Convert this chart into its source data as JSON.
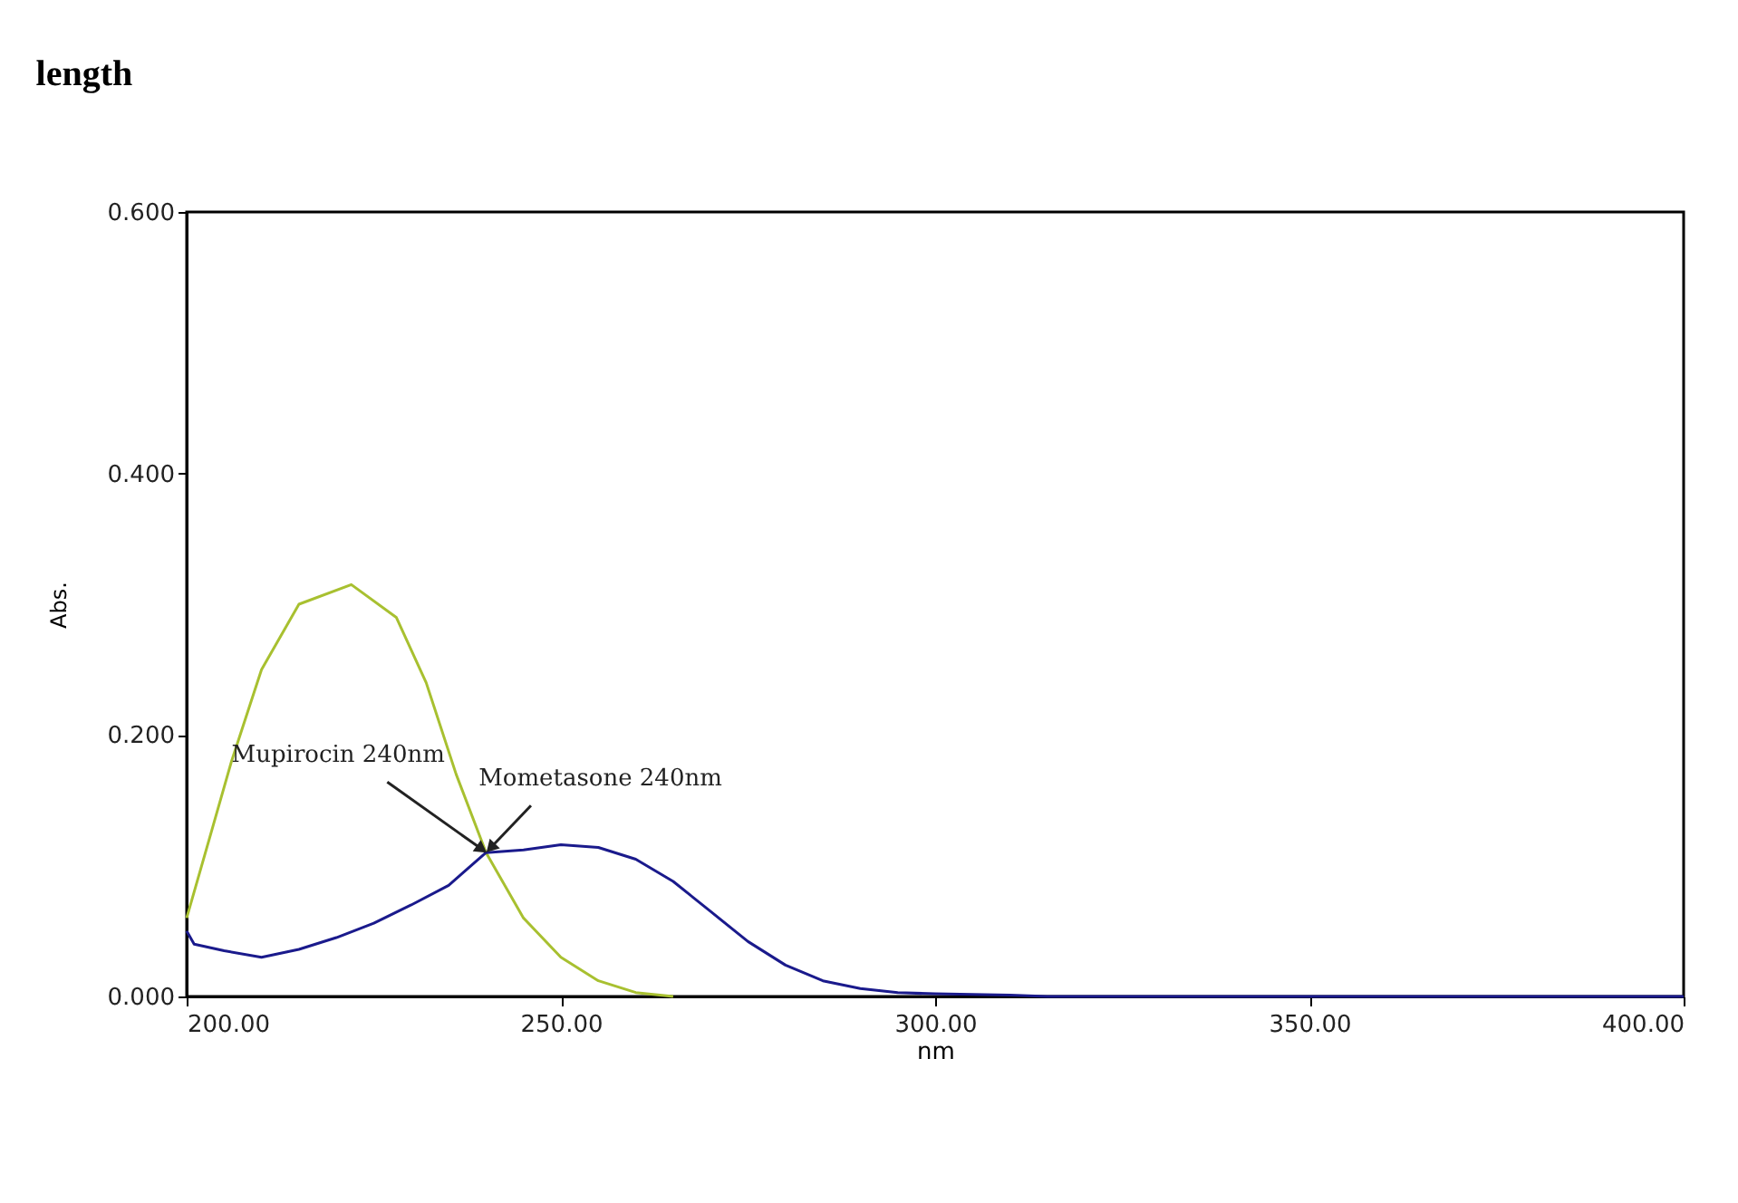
{
  "chart_data": {
    "type": "line",
    "title": "length",
    "xlabel": "nm",
    "ylabel": "Abs.",
    "x": [
      200,
      203,
      206,
      210,
      215,
      222,
      228,
      232,
      236,
      240,
      245,
      250,
      255,
      260,
      265
    ],
    "series": [
      {
        "color": "#a8c030",
        "values": [
          0.06,
          0.12,
          0.18,
          0.25,
          0.3,
          0.315,
          0.29,
          0.24,
          0.17,
          0.11,
          0.06,
          0.03,
          0.012,
          0.003,
          0.0
        ]
      },
      {
        "color": "#1a1a8c",
        "x": [
          200,
          201,
          205,
          210,
          215,
          220,
          225,
          230,
          235,
          240,
          245,
          250,
          255,
          260,
          265,
          270,
          275,
          280,
          285,
          290,
          295,
          300,
          310,
          315,
          400
        ],
        "values": [
          0.05,
          0.04,
          0.035,
          0.03,
          0.036,
          0.045,
          0.056,
          0.07,
          0.085,
          0.11,
          0.112,
          0.116,
          0.114,
          0.105,
          0.088,
          0.065,
          0.042,
          0.024,
          0.012,
          0.006,
          0.003,
          0.002,
          0.001,
          0.0,
          0.0
        ]
      }
    ],
    "annotations": [
      {
        "text": "Mupirocin 240nm",
        "x": 240,
        "y": 0.11
      },
      {
        "text": "Mometasone 240nm",
        "x": 240,
        "y": 0.11
      }
    ],
    "xlim": [
      200,
      400
    ],
    "ylim": [
      0,
      0.6
    ],
    "xticks": [
      {
        "value": 200,
        "label": "200.00"
      },
      {
        "value": 250,
        "label": "250.00"
      },
      {
        "value": 300,
        "label": "300.00"
      },
      {
        "value": 350,
        "label": "350.00"
      },
      {
        "value": 400,
        "label": "400.00"
      }
    ],
    "yticks": [
      {
        "value": 0,
        "label": "0.000"
      },
      {
        "value": 0.2,
        "label": "0.200"
      },
      {
        "value": 0.4,
        "label": "0.400"
      },
      {
        "value": 0.6,
        "label": "0.600"
      }
    ],
    "grid": false
  }
}
